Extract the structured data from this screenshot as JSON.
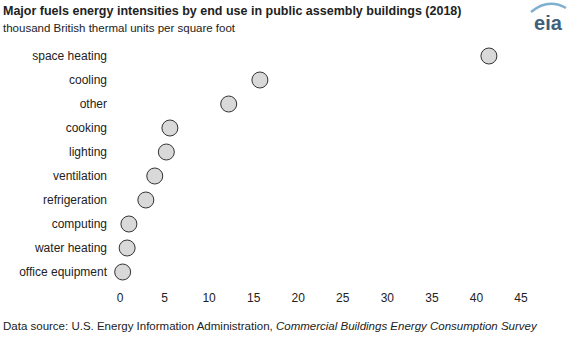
{
  "chart_data": {
    "type": "dot",
    "orientation": "horizontal",
    "title": "Major fuels energy intensities by end use in public assembly buildings (2018)",
    "subtitle": "thousand British thermal units per square foot",
    "categories": [
      "space heating",
      "cooling",
      "other",
      "cooking",
      "lighting",
      "ventilation",
      "refrigeration",
      "computing",
      "water heating",
      "office equipment"
    ],
    "values": [
      41.4,
      15.7,
      12.2,
      5.6,
      5.2,
      3.9,
      2.9,
      1.0,
      0.8,
      0.3
    ],
    "color": "#d9d9d9",
    "marker": "circle",
    "xlim": [
      0,
      45
    ],
    "xticks": [
      0,
      5,
      10,
      15,
      20,
      25,
      30,
      35,
      40,
      45
    ],
    "grid": false,
    "source": {
      "prefix": "Data source: U.S. Energy Information Administration, ",
      "title": "Commercial Buildings Energy Consumption Survey"
    },
    "logo": "eia"
  }
}
